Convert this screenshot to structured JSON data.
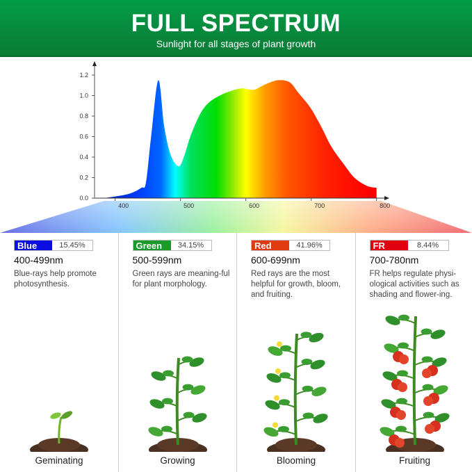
{
  "header": {
    "title": "FULL SPECTRUM",
    "subtitle": "Sunlight for all stages of plant growth"
  },
  "chart_data": {
    "type": "area",
    "title": "",
    "xlabel": "",
    "ylabel": "",
    "x_ticks": [
      "400",
      "500",
      "600",
      "700",
      "800"
    ],
    "y_ticks": [
      "0.0",
      "0.2",
      "0.4",
      "0.6",
      "0.8",
      "1.0",
      "1.2"
    ],
    "xlim": [
      368,
      820
    ],
    "ylim": [
      0,
      1.28
    ],
    "grid": false,
    "x": [
      383,
      420,
      440,
      447,
      455,
      466,
      475,
      485,
      497,
      505,
      515,
      530,
      543,
      560,
      575,
      593,
      605,
      614,
      630,
      649,
      667,
      680,
      699,
      715,
      731,
      750,
      766,
      785,
      800
    ],
    "y": [
      0,
      0.04,
      0.1,
      0.15,
      0.6,
      1.15,
      0.7,
      0.42,
      0.31,
      0.4,
      0.6,
      0.82,
      0.93,
      1.0,
      1.04,
      1.07,
      1.06,
      1.06,
      1.11,
      1.15,
      1.13,
      1.03,
      0.88,
      0.7,
      0.5,
      0.33,
      0.2,
      0.12,
      0.1
    ],
    "gradient_colors": [
      "#0020c0",
      "#0040ff",
      "#0066ff",
      "#00ffff",
      "#00e060",
      "#00dd00",
      "#aaee00",
      "#ffff00",
      "#ff9900",
      "#ff5500",
      "#ff2200",
      "#ff0000"
    ]
  },
  "bands": [
    {
      "name": "Blue",
      "percent": "15.45%",
      "range": "400-499nm",
      "description": "Blue-rays help promote photosynthesis.",
      "color": "#0a0ee0",
      "stage": "Geminating"
    },
    {
      "name": "Green",
      "percent": "34.15%",
      "range": "500-599nm",
      "description": "Green rays are meaning-ful for plant morphology.",
      "color": "#1a9a2a",
      "stage": "Growing"
    },
    {
      "name": "Red",
      "percent": "41.96%",
      "range": "600-699nm",
      "description": "Red rays are the most helpful for growth, bloom, and fruiting.",
      "color": "#e03a10",
      "stage": "Blooming"
    },
    {
      "name": "FR",
      "percent": "8.44%",
      "range": "700-780nm",
      "description": "FR helps regulate physi-ological activities such as shading and flower-ing.",
      "color": "#e00010",
      "stage": "Fruiting"
    }
  ]
}
